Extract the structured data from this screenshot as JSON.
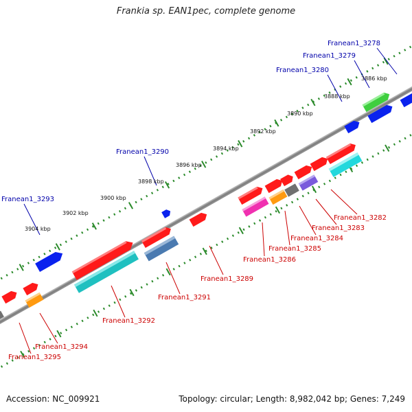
{
  "title": "Frankia sp. EAN1pec, complete genome",
  "footer": {
    "accession": "Accession: NC_009921",
    "topology": "Topology: circular; Length: 8,982,042 bp; Genes: 7,249"
  },
  "ticks": [
    "3886 kbp",
    "3888 kbp",
    "3890 kbp",
    "3892 kbp",
    "3894 kbp",
    "3896 kbp",
    "3898 kbp",
    "3900 kbp",
    "3902 kbp",
    "3904 kbp"
  ],
  "genes": {
    "Franean1_3278": "Franean1_3278",
    "Franean1_3279": "Franean1_3279",
    "Franean1_3280": "Franean1_3280",
    "Franean1_3282": "Franean1_3282",
    "Franean1_3283": "Franean1_3283",
    "Franean1_3284": "Franean1_3284",
    "Franean1_3285": "Franean1_3285",
    "Franean1_3286": "Franean1_3286",
    "Franean1_3289": "Franean1_3289",
    "Franean1_3290": "Franean1_3290",
    "Franean1_3291": "Franean1_3291",
    "Franean1_3292": "Franean1_3292",
    "Franean1_3293": "Franean1_3293",
    "Franean1_3294": "Franean1_3294",
    "Franean1_3295": "Franean1_3295"
  },
  "colors": {
    "backbone": "#8a8a8a",
    "tick_track": "#2a8a2a",
    "red": "#ff1a1a",
    "blue": "#0a22ee",
    "green": "#3fcf3f",
    "cyan": "#22d8dc",
    "teal": "#1fc0c0",
    "steel": "#4a7ab0",
    "orange": "#ff9a10",
    "magenta": "#f030b0",
    "gray": "#707070",
    "purple": "#7a5adc",
    "label_blue": "#0000aa",
    "label_red": "#cc0000"
  }
}
